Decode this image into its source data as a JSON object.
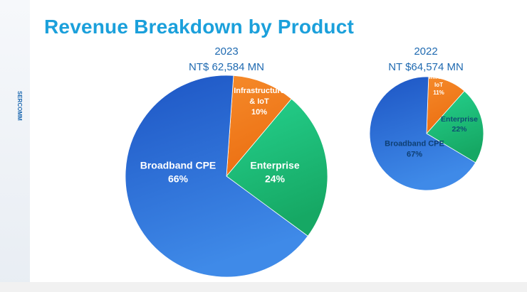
{
  "slide": {
    "title": "Revenue Breakdown by Product",
    "brand": "SERCOMM"
  },
  "chart_data": [
    {
      "type": "pie",
      "title": "2023",
      "subtitle": "NT$ 62,584 MN",
      "categories": [
        "Infrastructure & IoT",
        "Enterprise",
        "Broadband CPE"
      ],
      "values": [
        10,
        24,
        66
      ],
      "labels": [
        {
          "name_lines": [
            "Infrastructure",
            "& IoT"
          ],
          "pct": "10%"
        },
        {
          "name_lines": [
            "Enterprise"
          ],
          "pct": "24%"
        },
        {
          "name_lines": [
            "Broadband CPE"
          ],
          "pct": "66%"
        }
      ],
      "colors": [
        "#f07d1e",
        "#1fbf7e",
        "#2e6fd6"
      ]
    },
    {
      "type": "pie",
      "title": "2022",
      "subtitle": "NT $64,574 MN",
      "categories": [
        "Infra. & IoT",
        "Enterprise",
        "Broadband CPE"
      ],
      "values": [
        11,
        22,
        67
      ],
      "labels": [
        {
          "name_lines": [
            "Infra. &",
            "IoT"
          ],
          "pct": "11%"
        },
        {
          "name_lines": [
            "Enterprise"
          ],
          "pct": "22%"
        },
        {
          "name_lines": [
            "Broadband CPE"
          ],
          "pct": "67%"
        }
      ],
      "colors": [
        "#f07d1e",
        "#1fbf7e",
        "#2e6fd6"
      ]
    }
  ]
}
